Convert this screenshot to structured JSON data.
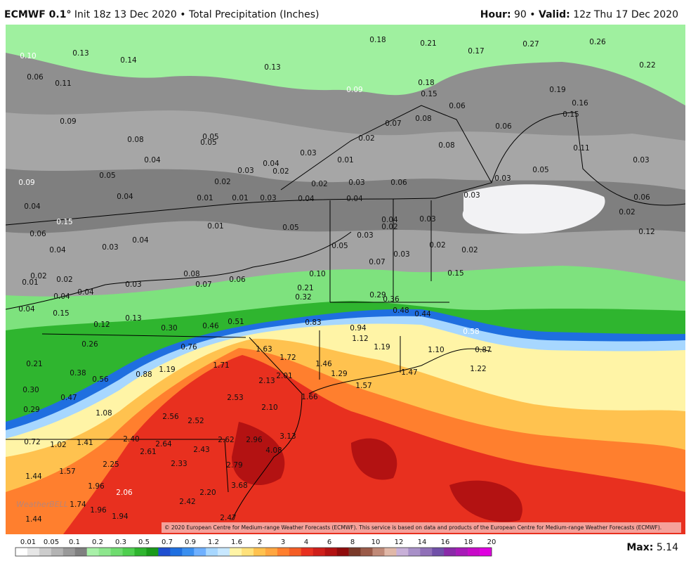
{
  "header": {
    "model": "ECMWF 0.1°",
    "init": "Init 18z 13 Dec 2020",
    "separator_left": "•",
    "product": "Total Precipitation (Inches)",
    "hour_label": "Hour:",
    "hour": "90",
    "separator_right": "•",
    "valid_label": "Valid:",
    "valid": "12z Thu 17 Dec 2020"
  },
  "labels": [
    "0.10",
    "0.13",
    "0.14",
    "0.13",
    "0.18",
    "0.21",
    "0.17",
    "0.27",
    "0.26",
    "0.22",
    "0.06",
    "0.11",
    "0.09",
    "0.18",
    "0.15",
    "0.19",
    "0.16",
    "0.15",
    "0.06",
    "0.09",
    "0.07",
    "0.08",
    "0.06",
    "0.08",
    "0.05",
    "0.05",
    "0.02",
    "0.08",
    "0.11",
    "0.03",
    "0.01",
    "0.04",
    "0.04",
    "0.03",
    "0.02",
    "0.05",
    "0.03",
    "0.05",
    "0.02",
    "0.02",
    "0.03",
    "0.06",
    "0.03",
    "0.09",
    "0.04",
    "0.01",
    "0.01",
    "0.03",
    "0.04",
    "0.04",
    "0.03",
    "0.06",
    "0.04",
    "0.15",
    "0.01",
    "0.05",
    "0.04",
    "0.02",
    "0.03",
    "0.03",
    "0.06",
    "0.02",
    "0.12",
    "0.04",
    "0.03",
    "0.04",
    "0.05",
    "0.02",
    "0.02",
    "0.03",
    "0.07",
    "0.08",
    "0.15",
    "0.02",
    "0.02",
    "0.01",
    "0.10",
    "0.06",
    "0.07",
    "0.03",
    "0.04",
    "0.04",
    "0.21",
    "0.32",
    "0.29",
    "0.36",
    "0.04",
    "0.15",
    "0.48",
    "0.44",
    "0.13",
    "0.12",
    "0.30",
    "0.46",
    "0.51",
    "0.83",
    "0.94",
    "0.58",
    "1.12",
    "0.26",
    "0.76",
    "1.63",
    "1.19",
    "1.10",
    "0.87",
    "1.72",
    "0.21",
    "0.38",
    "1.19",
    "1.71",
    "1.46",
    "1.29",
    "2.01",
    "1.47",
    "1.22",
    "0.56",
    "0.88",
    "2.13",
    "1.57",
    "0.30",
    "1.66",
    "0.47",
    "2.53",
    "2.10",
    "0.29",
    "1.08",
    "2.56",
    "2.52",
    "3.13",
    "2.96",
    "0.72",
    "1.02",
    "1.41",
    "2.40",
    "2.64",
    "2.62",
    "4.08",
    "2.61",
    "2.43",
    "1.57",
    "2.25",
    "2.33",
    "2.79",
    "1.44",
    "1.96",
    "3.68",
    "2.06",
    "2.20",
    "1.74",
    "1.96",
    "1.94",
    "2.42",
    "1.44",
    "2.47"
  ],
  "colorbar": {
    "labels": [
      "0.01",
      "0.05",
      "0.1",
      "0.2",
      "0.3",
      "0.5",
      "0.7",
      "0.9",
      "1.2",
      "1.6",
      "2",
      "3",
      "4",
      "6",
      "8",
      "10",
      "12",
      "14",
      "16",
      "18",
      "20"
    ],
    "colors": [
      "#ffffff",
      "#e6e6e6",
      "#cccccc",
      "#b3b3b3",
      "#999999",
      "#808080",
      "#a8f0a8",
      "#8de68d",
      "#6fdc6f",
      "#4fcf4f",
      "#2fb52f",
      "#1a9a1a",
      "#1f4fd0",
      "#1f6fe0",
      "#3a8ff0",
      "#6fb0ff",
      "#a7d7ff",
      "#c8e8ff",
      "#fff4a6",
      "#ffe17a",
      "#ffc24f",
      "#ffa640",
      "#ff7f2e",
      "#f55d25",
      "#e8301f",
      "#cf1f1a",
      "#b31212",
      "#8f0b0b",
      "#7a3a2a",
      "#9a5a48",
      "#c08a78",
      "#e0b8a8",
      "#c8b0d8",
      "#a890c8",
      "#9070b8",
      "#7050a8",
      "#8a2aa8",
      "#a81ab8",
      "#c80ac8",
      "#e000e0"
    ]
  },
  "credit": "© 2020 European Centre for Medium-range Weather Forecasts (ECMWF). This service is based on data and products of the European Centre for Medium-range Weather Forecasts (ECMWF).",
  "watermark": "WeatherBELL",
  "max": {
    "label": "Max:",
    "value": "5.14"
  }
}
